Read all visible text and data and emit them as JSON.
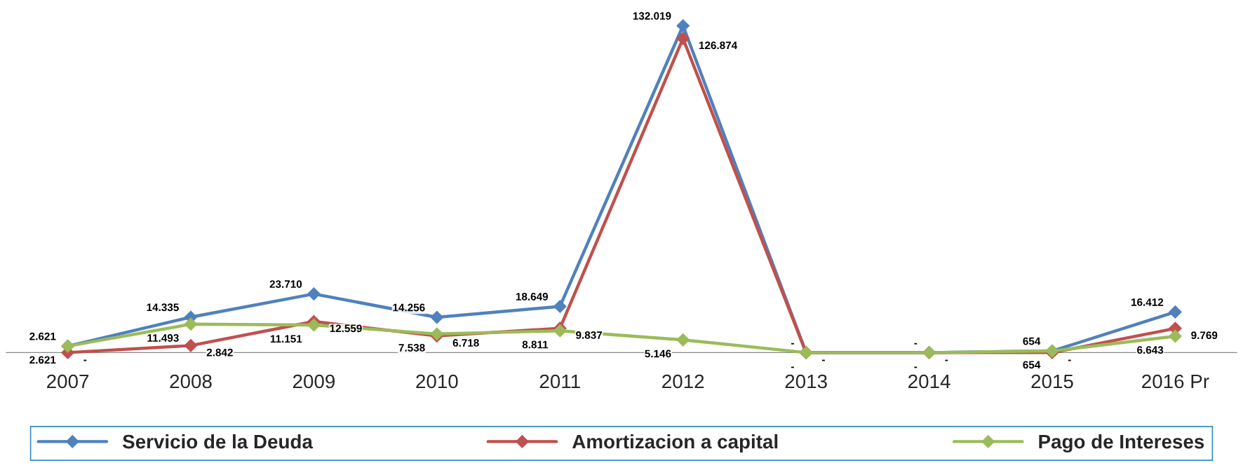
{
  "chart_data": {
    "type": "line",
    "categories": [
      "2007",
      "2008",
      "2009",
      "2010",
      "2011",
      "2012",
      "2013",
      "2014",
      "2015",
      "2016 Pr"
    ],
    "series": [
      {
        "name": "Servicio de la Deuda",
        "color": "#4f81bd",
        "values": [
          2621,
          14335,
          23710,
          14256,
          18649,
          132019,
          0,
          0,
          654,
          16412
        ],
        "value_labels": [
          "2.621",
          "14.335",
          "23.710",
          "14.256",
          "18.649",
          "132.019",
          "-",
          "-",
          "654",
          "16.412"
        ]
      },
      {
        "name": "Amortizacion a capital",
        "color": "#c0504d",
        "values": [
          0,
          2842,
          12559,
          6718,
          9837,
          126874,
          0,
          0,
          0,
          9769
        ],
        "value_labels": [
          "-",
          "2.842",
          "12.559",
          "6.718",
          "9.837",
          "126.874",
          "-",
          "-",
          "-",
          "9.769"
        ]
      },
      {
        "name": "Pago de Intereses",
        "color": "#9bbb59",
        "values": [
          2621,
          11493,
          11151,
          7538,
          8811,
          5146,
          0,
          0,
          654,
          6643
        ],
        "value_labels": [
          "2.621",
          "11.493",
          "11.151",
          "7.538",
          "8.811",
          "5.146",
          "-",
          "-",
          "654",
          "6.643"
        ]
      }
    ],
    "marker": "diamond",
    "legend": "bottom",
    "grid": false
  }
}
